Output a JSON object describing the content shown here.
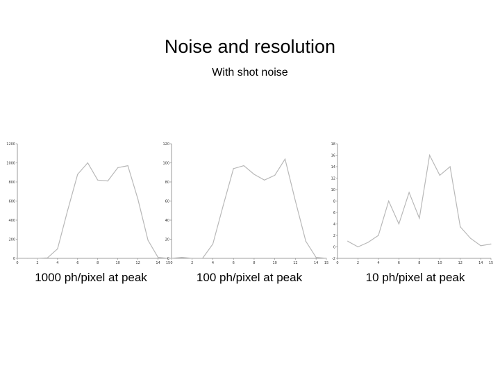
{
  "slide": {
    "title": "Noise and resolution",
    "subtitle": "With shot noise",
    "captions": [
      "1000 ph/pixel at peak",
      "100 ph/pixel at peak",
      "10 ph/pixel at peak"
    ]
  },
  "colors": {
    "line": "#b8b8b8",
    "axis": "#7f7f7f",
    "text": "#000000"
  },
  "chart_data": [
    {
      "type": "line",
      "x": [
        0,
        1,
        2,
        3,
        4,
        5,
        6,
        7,
        8,
        9,
        10,
        11,
        12,
        13,
        14,
        15
      ],
      "series": [
        {
          "values": [
            0,
            0,
            0,
            5,
            100,
            500,
            880,
            1000,
            820,
            810,
            950,
            970,
            620,
            190,
            10,
            0
          ]
        }
      ],
      "xlim": [
        0,
        15
      ],
      "ylim": [
        0,
        1200
      ],
      "xticks": [
        0,
        2,
        4,
        6,
        8,
        10,
        12,
        14,
        15
      ],
      "yticks": [
        0,
        200,
        400,
        600,
        800,
        1000,
        1200
      ],
      "xlabel": "",
      "ylabel": "",
      "grid": false
    },
    {
      "type": "line",
      "x": [
        0,
        1,
        2,
        3,
        4,
        5,
        6,
        7,
        8,
        9,
        10,
        11,
        12,
        13,
        14,
        15
      ],
      "series": [
        {
          "values": [
            0,
            1,
            0,
            0,
            15,
            55,
            94,
            97,
            88,
            82,
            87,
            104,
            60,
            18,
            1,
            0
          ]
        }
      ],
      "xlim": [
        0,
        15
      ],
      "ylim": [
        0,
        120
      ],
      "xticks": [
        0,
        2,
        4,
        6,
        8,
        10,
        12,
        14,
        15
      ],
      "yticks": [
        0,
        20,
        40,
        60,
        80,
        100,
        120
      ],
      "xlabel": "",
      "ylabel": "",
      "grid": false
    },
    {
      "type": "line",
      "x": [
        1,
        2,
        3,
        4,
        5,
        6,
        7,
        8,
        9,
        10,
        11,
        12,
        13,
        14,
        15
      ],
      "series": [
        {
          "values": [
            1,
            0,
            0.8,
            2,
            8,
            4,
            9.5,
            5,
            16,
            12.5,
            14,
            3.5,
            1.5,
            0.2,
            0.5
          ]
        }
      ],
      "xlim": [
        0,
        15
      ],
      "ylim": [
        -2,
        18
      ],
      "xticks": [
        0,
        2,
        4,
        6,
        8,
        10,
        12,
        14,
        15
      ],
      "yticks": [
        -2,
        0,
        2,
        4,
        6,
        8,
        10,
        12,
        14,
        16,
        18
      ],
      "xlabel": "",
      "ylabel": "",
      "grid": false
    }
  ]
}
